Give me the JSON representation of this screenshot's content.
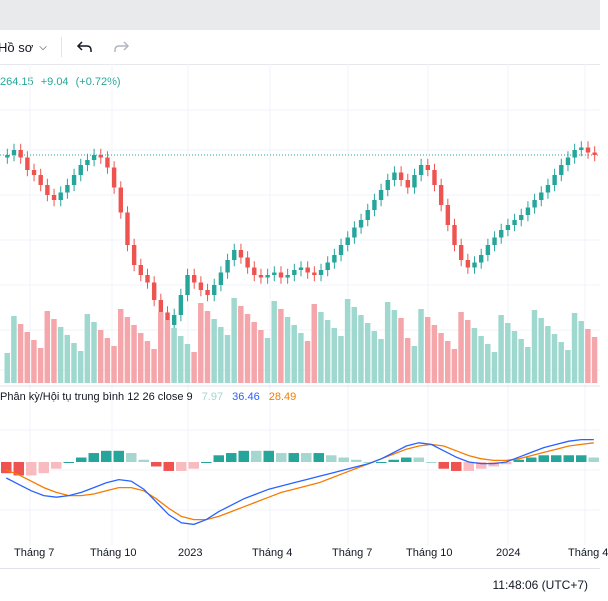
{
  "toolbar": {
    "profile_label": "Hồ sơ",
    "undo_icon": "undo-icon",
    "redo_icon": "redo-icon"
  },
  "legend": {
    "price": "264.15",
    "change": "+9.04",
    "change_pct": "(+0.72%)"
  },
  "macd": {
    "label": "Phân kỳ/Hội tụ trung bình 12 26 close 9",
    "histogram_value": "7.97",
    "macd_value": "36.46",
    "signal_value": "28.49"
  },
  "x_axis": {
    "labels": [
      "Tháng 7",
      "Tháng 10",
      "2023",
      "Tháng 4",
      "Tháng 7",
      "Tháng 10",
      "2024",
      "Tháng 4"
    ]
  },
  "status": {
    "clock": "11:48:06 (UTC+7)"
  },
  "colors": {
    "up": "#26a69a",
    "down": "#ef5350",
    "up_volume": "#9fd8cf",
    "down_volume": "#f5a6ab",
    "macd_line": "#2962ff",
    "signal_line": "#f57c00"
  },
  "chart_data": {
    "type": "candlestick",
    "x_labels": [
      "Tháng 7",
      "Tháng 10",
      "2023",
      "Tháng 4",
      "Tháng 7",
      "Tháng 10",
      "2024",
      "Tháng 4"
    ],
    "price_level_line": 264.15,
    "close_series": [
      0.78,
      0.8,
      0.77,
      0.72,
      0.7,
      0.66,
      0.62,
      0.6,
      0.63,
      0.66,
      0.7,
      0.74,
      0.76,
      0.78,
      0.77,
      0.73,
      0.65,
      0.55,
      0.42,
      0.34,
      0.3,
      0.27,
      0.2,
      0.15,
      0.1,
      0.14,
      0.22,
      0.3,
      0.27,
      0.24,
      0.22,
      0.26,
      0.31,
      0.36,
      0.4,
      0.37,
      0.33,
      0.3,
      0.29,
      0.3,
      0.31,
      0.29,
      0.3,
      0.32,
      0.33,
      0.31,
      0.3,
      0.32,
      0.35,
      0.38,
      0.42,
      0.45,
      0.49,
      0.52,
      0.56,
      0.6,
      0.64,
      0.68,
      0.71,
      0.68,
      0.65,
      0.7,
      0.74,
      0.72,
      0.66,
      0.58,
      0.5,
      0.42,
      0.36,
      0.33,
      0.35,
      0.38,
      0.42,
      0.45,
      0.48,
      0.5,
      0.52,
      0.54,
      0.57,
      0.6,
      0.63,
      0.66,
      0.7,
      0.74,
      0.77,
      0.8,
      0.81,
      0.79,
      0.78
    ],
    "macd_series": [
      -0.2,
      -0.28,
      -0.36,
      -0.42,
      -0.44,
      -0.42,
      -0.38,
      -0.32,
      -0.26,
      -0.22,
      -0.24,
      -0.34,
      -0.5,
      -0.66,
      -0.76,
      -0.78,
      -0.72,
      -0.62,
      -0.54,
      -0.46,
      -0.4,
      -0.34,
      -0.3,
      -0.26,
      -0.22,
      -0.18,
      -0.14,
      -0.1,
      -0.06,
      -0.02,
      0.04,
      0.12,
      0.2,
      0.24,
      0.22,
      0.14,
      0.06,
      0.0,
      -0.02,
      -0.02,
      0.0,
      0.06,
      0.12,
      0.18,
      0.22,
      0.26,
      0.28,
      0.28
    ],
    "signal_series": [
      -0.1,
      -0.16,
      -0.24,
      -0.32,
      -0.38,
      -0.42,
      -0.42,
      -0.4,
      -0.36,
      -0.32,
      -0.32,
      -0.36,
      -0.46,
      -0.58,
      -0.68,
      -0.72,
      -0.72,
      -0.68,
      -0.62,
      -0.56,
      -0.5,
      -0.44,
      -0.38,
      -0.34,
      -0.3,
      -0.26,
      -0.2,
      -0.14,
      -0.08,
      -0.02,
      0.04,
      0.1,
      0.16,
      0.2,
      0.22,
      0.2,
      0.14,
      0.08,
      0.04,
      0.02,
      0.02,
      0.04,
      0.08,
      0.12,
      0.16,
      0.2,
      0.22,
      0.24
    ]
  }
}
